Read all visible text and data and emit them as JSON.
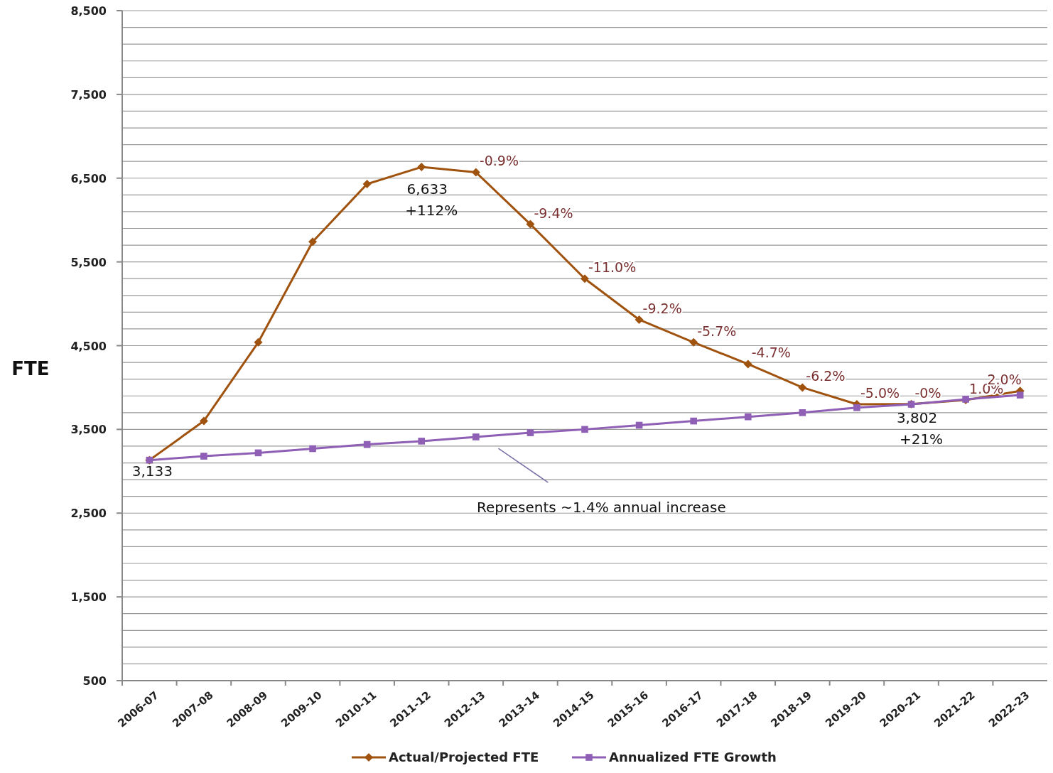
{
  "chart_data": {
    "type": "line",
    "ylabel": "FTE",
    "categories": [
      "2006-07",
      "2007-08",
      "2008-09",
      "2009-10",
      "2010-11",
      "2011-12",
      "2012-13",
      "2013-14",
      "2014-15",
      "2015-16",
      "2016-17",
      "2017-18",
      "2018-19",
      "2019-20",
      "2020-21",
      "2021-22",
      "2022-23"
    ],
    "series": [
      {
        "name": "Actual/Projected FTE",
        "color": "#a0520f",
        "marker": "diamond",
        "values": [
          3133,
          3600,
          4540,
          5740,
          6430,
          6633,
          6570,
          5950,
          5300,
          4810,
          4540,
          4280,
          4000,
          3800,
          3802,
          3850,
          3960
        ]
      },
      {
        "name": "Annualized FTE Growth",
        "color": "#8e5fb5",
        "marker": "square",
        "values": [
          3133,
          3180,
          3220,
          3270,
          3320,
          3360,
          3410,
          3460,
          3500,
          3550,
          3600,
          3650,
          3700,
          3760,
          3800,
          3860,
          3910
        ]
      }
    ],
    "ylim": [
      500,
      8500
    ],
    "yticks": [
      500,
      {
        "value": 700,
        "label": null
      },
      {
        "value": 900,
        "label": null
      },
      {
        "value": 1100,
        "label": null
      },
      {
        "value": 1300,
        "label": null
      },
      {
        "value": 1500,
        "label": "1,500"
      },
      {
        "value": 1700,
        "label": null
      },
      {
        "value": 1900,
        "label": null
      },
      {
        "value": 2100,
        "label": null
      },
      {
        "value": 2300,
        "label": null
      },
      {
        "value": 2500,
        "label": "2,500"
      },
      {
        "value": 2700,
        "label": null
      },
      {
        "value": 2900,
        "label": null
      },
      {
        "value": 3100,
        "label": null
      },
      {
        "value": 3300,
        "label": null
      },
      {
        "value": 3500,
        "label": "3,500"
      },
      {
        "value": 3700,
        "label": null
      },
      {
        "value": 3900,
        "label": null
      },
      {
        "value": 4100,
        "label": null
      },
      {
        "value": 4300,
        "label": null
      },
      {
        "value": 4500,
        "label": "4,500"
      },
      {
        "value": 4700,
        "label": null
      },
      {
        "value": 4900,
        "label": null
      },
      {
        "value": 5100,
        "label": null
      },
      {
        "value": 5300,
        "label": null
      },
      {
        "value": 5500,
        "label": "5,500"
      },
      {
        "value": 5700,
        "label": null
      },
      {
        "value": 5900,
        "label": null
      },
      {
        "value": 6100,
        "label": null
      },
      {
        "value": 6300,
        "label": null
      },
      {
        "value": 6500,
        "label": "6,500"
      },
      {
        "value": 6700,
        "label": null
      },
      {
        "value": 6900,
        "label": null
      },
      {
        "value": 7100,
        "label": null
      },
      {
        "value": 7300,
        "label": null
      },
      {
        "value": 7500,
        "label": "7,500"
      },
      {
        "value": 7700,
        "label": null
      },
      {
        "value": 7900,
        "label": null
      },
      {
        "value": 8100,
        "label": null
      },
      {
        "value": 8300,
        "label": null
      },
      {
        "value": 8500,
        "label": "8,500"
      }
    ],
    "grid": "y",
    "legend": "bottom",
    "annotations": [
      "3,133",
      {
        "text": "6,633 +112%",
        "x": "2011-12",
        "y": 6633
      },
      {
        "text": "-0.9%",
        "x": "2012-13",
        "y": 6570
      },
      "-9.4%",
      "-11.0%",
      "-9.2%",
      {
        "text": "-5.7%",
        "x": "2016-17",
        "y": 4540
      },
      {
        "text": "-4.7%",
        "x": "2017-18",
        "y": 4280
      },
      {
        "text": "-6.2%",
        "x": "2018-19",
        "y": 4000
      },
      {
        "text": "-5.0%",
        "x": "2019-20",
        "y": 3800
      },
      {
        "text": "-0%",
        "x": "2020-21",
        "y": 3802
      },
      {
        "text": "3,802 +21%",
        "x": "2020-21",
        "y": 3802
      },
      {
        "text": "1.0%",
        "x": "2021-22",
        "y": 3850
      },
      {
        "text": "2.0%",
        "x": "2022-23",
        "y": 3960
      },
      "Represents ~1.4% annual increase"
    ]
  }
}
